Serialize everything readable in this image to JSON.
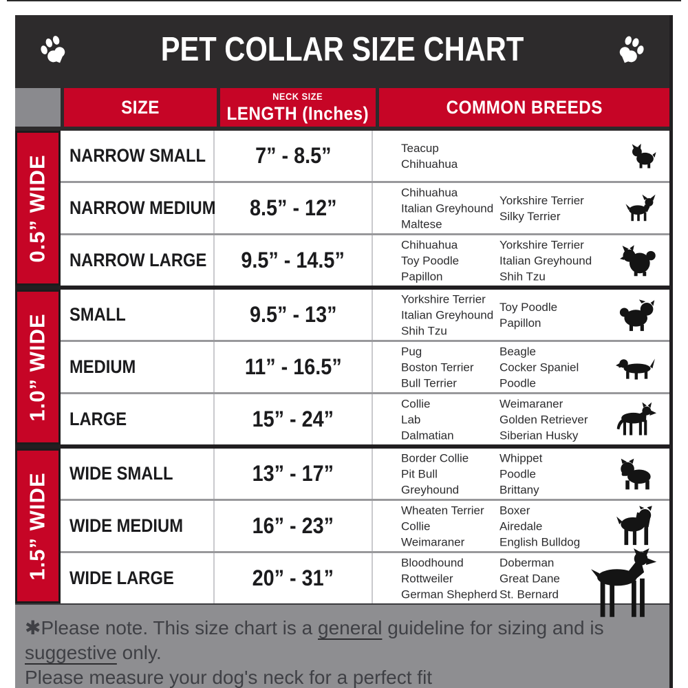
{
  "title": "PET COLLAR SIZE CHART",
  "icons": {
    "left_paw": "paw-icon",
    "right_paw": "paw-icon"
  },
  "colors": {
    "accent_red": "#c60526",
    "titlebar_black": "#2d2b2c",
    "corner_gray": "#8a8a8e",
    "footer_gray": "#8e8e91",
    "row_separator_gray": "#98989b"
  },
  "table": {
    "headers": {
      "size": "SIZE",
      "neck_top": "NECK SIZE",
      "neck_bottom": "LENGTH (Inches)",
      "breeds": "COMMON BREEDS"
    },
    "groups": [
      {
        "width_label": "0.5” WIDE",
        "rows": [
          {
            "size": "NARROW SMALL",
            "neck": "7” - 8.5”",
            "breeds_col1": [
              "Teacup",
              "Chihuahua"
            ],
            "breeds_col2": [],
            "icon": "yorkshire-terrier-icon"
          },
          {
            "size": "NARROW MEDIUM",
            "neck": "8.5” - 12”",
            "breeds_col1": [
              "Chihuahua",
              "Italian Greyhound",
              "Maltese"
            ],
            "breeds_col2": [
              "Yorkshire Terrier",
              "Silky Terrier"
            ],
            "icon": "chihuahua-icon"
          },
          {
            "size": "NARROW LARGE",
            "neck": "9.5” - 14.5”",
            "breeds_col1": [
              "Chihuahua",
              "Toy Poodle",
              "Papillon"
            ],
            "breeds_col2": [
              "Yorkshire Terrier",
              "Italian Greyhound",
              "Shih Tzu"
            ],
            "icon": "pomeranian-icon"
          }
        ]
      },
      {
        "width_label": "1.0” WIDE",
        "rows": [
          {
            "size": "SMALL",
            "neck": "9.5” - 13”",
            "breeds_col1": [
              "Yorkshire Terrier",
              "Italian Greyhound",
              "Shih Tzu"
            ],
            "breeds_col2": [
              "Toy Poodle",
              "Papillon"
            ],
            "icon": "shih-tzu-icon"
          },
          {
            "size": "MEDIUM",
            "neck": "11” - 16.5”",
            "breeds_col1": [
              "Pug",
              "Boston Terrier",
              "Bull Terrier"
            ],
            "breeds_col2": [
              "Beagle",
              "Cocker Spaniel",
              "Poodle"
            ],
            "icon": "dachshund-icon"
          },
          {
            "size": "LARGE",
            "neck": "15” - 24”",
            "breeds_col1": [
              "Collie",
              "Lab",
              "Dalmatian"
            ],
            "breeds_col2": [
              "Weimaraner",
              "Golden Retriever",
              "Siberian Husky"
            ],
            "icon": "german-shepherd-icon"
          }
        ]
      },
      {
        "width_label": "1.5” WIDE",
        "rows": [
          {
            "size": "WIDE SMALL",
            "neck": "13” - 17”",
            "breeds_col1": [
              "Border Collie",
              "Pit Bull",
              "Greyhound"
            ],
            "breeds_col2": [
              "Whippet",
              "Poodle",
              "Brittany"
            ],
            "icon": "bulldog-icon"
          },
          {
            "size": "WIDE MEDIUM",
            "neck": "16” - 23”",
            "breeds_col1": [
              "Wheaten Terrier",
              "Collie",
              "Weimaraner"
            ],
            "breeds_col2": [
              "Boxer",
              "Airedale",
              "English Bulldog"
            ],
            "icon": "pit-bull-icon"
          },
          {
            "size": "WIDE LARGE",
            "neck": "20” - 31”",
            "breeds_col1": [
              "Bloodhound",
              "Rottweiler",
              "German Shepherd"
            ],
            "breeds_col2": [
              "Doberman",
              "Great Dane",
              "St. Bernard"
            ],
            "icon": "doberman-icon"
          }
        ]
      }
    ]
  },
  "footer": {
    "line1_parts": [
      {
        "text": "✱Please note. This size chart is a "
      },
      {
        "text": "general",
        "underline": true
      },
      {
        "text": " guideline for sizing and is "
      },
      {
        "text": "suggestive",
        "underline": true
      },
      {
        "text": " only."
      }
    ],
    "line2": "Please measure your dog's neck for a perfect fit"
  }
}
